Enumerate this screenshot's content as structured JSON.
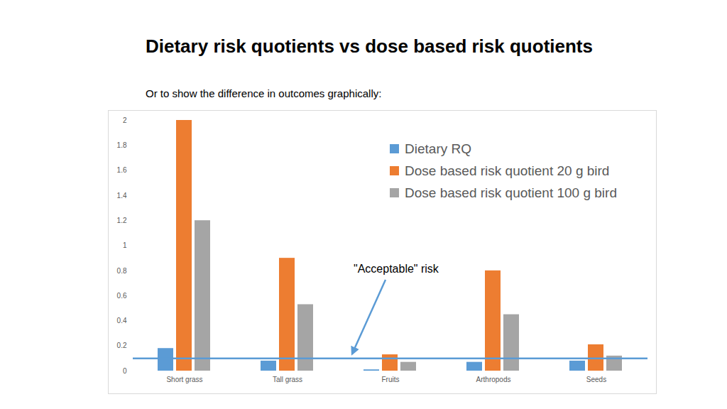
{
  "chart_data": {
    "type": "bar",
    "title": "Dietary risk quotients vs dose based risk quotients",
    "subtitle": "Or to show the difference in outcomes graphically:",
    "categories": [
      "Short grass",
      "Tall grass",
      "Fruits",
      "Arthropods",
      "Seeds"
    ],
    "series": [
      {
        "name": "Dietary RQ",
        "color": "#5b9bd5",
        "values": [
          0.18,
          0.08,
          0.01,
          0.07,
          0.08
        ]
      },
      {
        "name": "Dose based risk quotient 20 g bird",
        "color": "#ed7d31",
        "values": [
          2.0,
          0.9,
          0.13,
          0.8,
          0.21
        ]
      },
      {
        "name": "Dose based risk quotient 100 g bird",
        "color": "#a5a5a5",
        "values": [
          1.2,
          0.53,
          0.07,
          0.45,
          0.12
        ]
      }
    ],
    "reference_line": {
      "value": 0.1,
      "label": "\"Acceptable\" risk",
      "color": "#5b9bd5"
    },
    "ylim": [
      0,
      2
    ],
    "yticks": [
      0,
      0.2,
      0.4,
      0.6,
      0.8,
      1,
      1.2,
      1.4,
      1.6,
      1.8,
      2
    ],
    "grid": false,
    "legend": "top-right"
  }
}
